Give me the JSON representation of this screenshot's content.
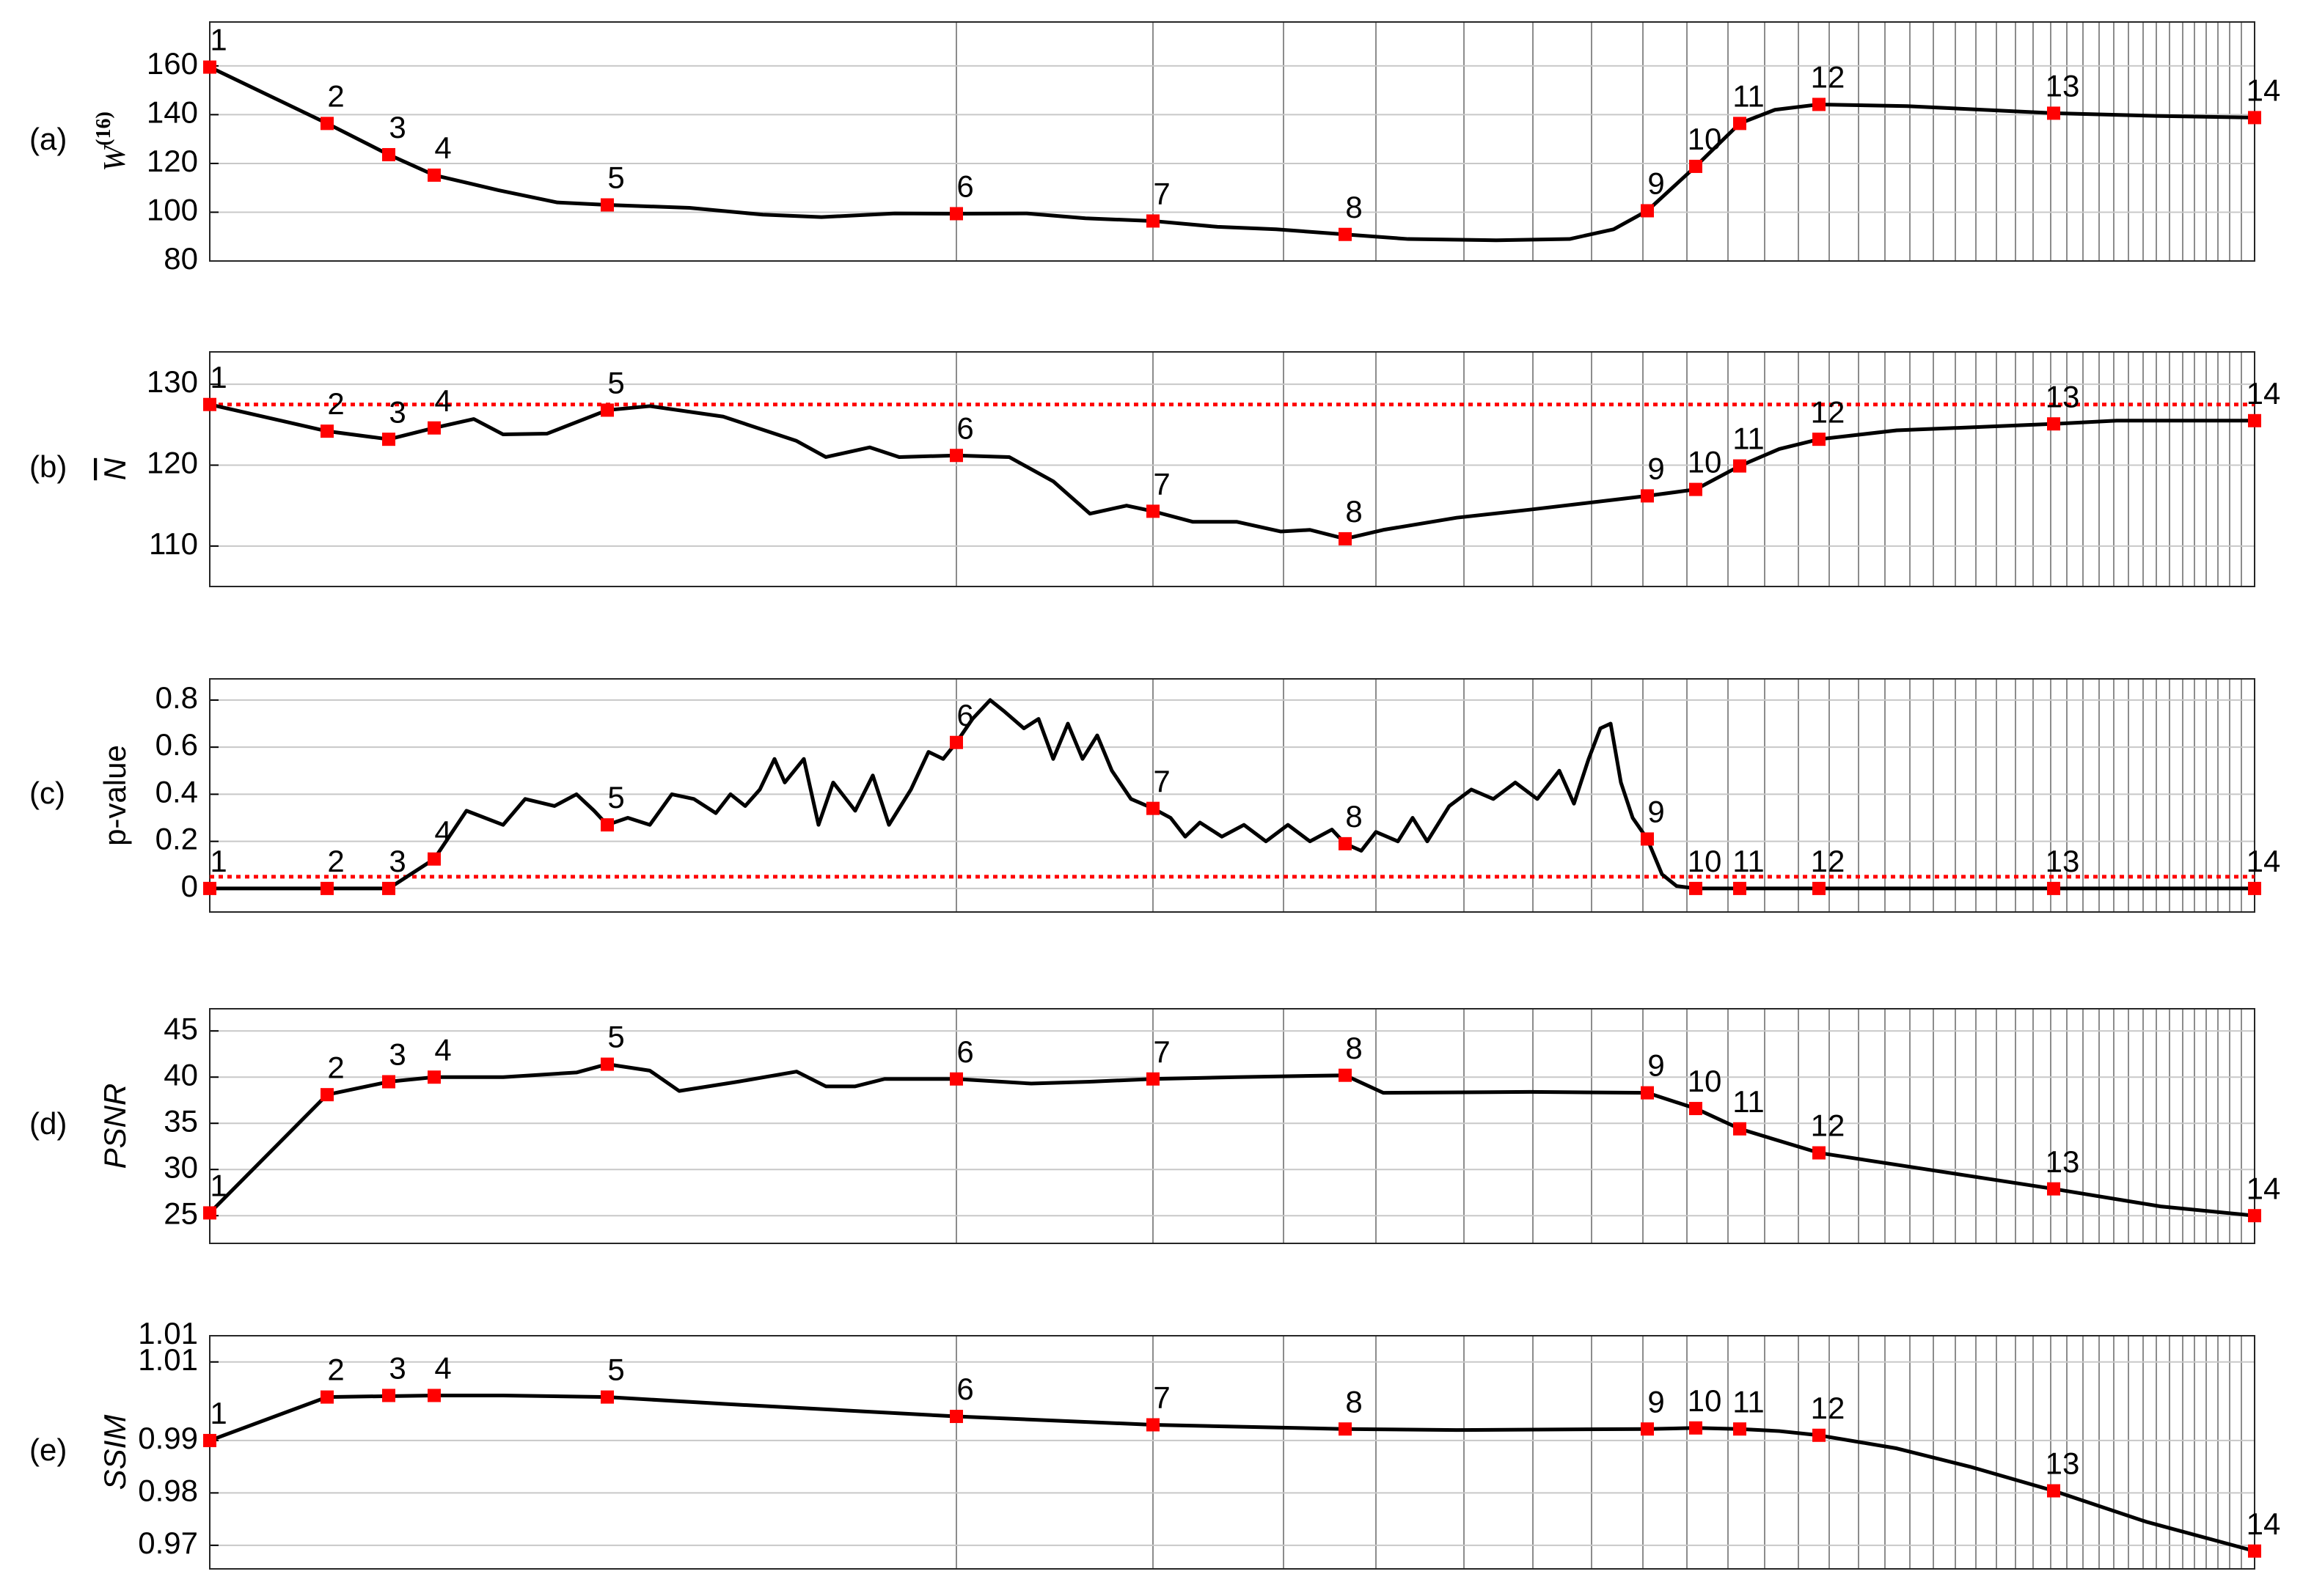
{
  "chart_data": [
    {
      "type": "line",
      "panel": "(a)",
      "ylabel": "W",
      "ylabel_sup": "(16)",
      "ylabel_italic": true,
      "ylabel_overline": false,
      "xlim": [
        0,
        1394
      ],
      "xticks": [
        509,
        643,
        732,
        795,
        855,
        902,
        942,
        977,
        1007,
        1035,
        1060,
        1083,
        1104,
        1124,
        1142,
        1159,
        1175,
        1190,
        1204,
        1218,
        1231,
        1243,
        1255,
        1266,
        1277,
        1288,
        1298,
        1308,
        1318,
        1327,
        1336,
        1345,
        1353,
        1361,
        1369,
        1377,
        1385
      ],
      "ylim": [
        80,
        178
      ],
      "yticks": [
        80,
        100,
        120,
        140,
        160
      ],
      "grid": true,
      "series": [
        {
          "color": "#000000",
          "x": [
            0,
            80,
            122,
            153,
            197,
            237,
            271,
            327,
            377,
            417,
            467,
            509,
            557,
            597,
            643,
            687,
            727,
            774,
            817,
            877,
            927,
            957,
            980,
            1013,
            1043,
            1067,
            1097,
            1157,
            1257,
            1327,
            1394
          ],
          "values": [
            159.5,
            136.4,
            123.6,
            115.2,
            109,
            104,
            103,
            101.8,
            99,
            98,
            99.5,
            99.4,
            99.5,
            97.5,
            96.4,
            94,
            93,
            90.9,
            89,
            88.5,
            89,
            93,
            100.6,
            118.8,
            136.4,
            142,
            144.2,
            143.5,
            140.6,
            139.5,
            138.8
          ]
        },
        {
          "color": "#ff0000",
          "marker": "square",
          "x": [
            0,
            80,
            122,
            153,
            271,
            509,
            643,
            774,
            980,
            1013,
            1043,
            1097,
            1257,
            1394
          ],
          "values": [
            159.5,
            136.4,
            123.6,
            115.2,
            103,
            99.4,
            96.4,
            90.9,
            100.6,
            118.8,
            136.4,
            144.2,
            140.6,
            138.8
          ],
          "point_labels": [
            "1",
            "2",
            "3",
            "4",
            "5",
            "6",
            "7",
            "8",
            "9",
            "10",
            "11",
            "12",
            "13",
            "14"
          ]
        }
      ]
    },
    {
      "type": "line",
      "panel": "(b)",
      "ylabel": "N",
      "ylabel_italic": true,
      "ylabel_overline": true,
      "xlim": [
        0,
        1394
      ],
      "xticks": [
        509,
        643,
        732,
        795,
        855,
        902,
        942,
        977,
        1007,
        1035,
        1060,
        1083,
        1104,
        1124,
        1142,
        1159,
        1175,
        1190,
        1204,
        1218,
        1231,
        1243,
        1255,
        1266,
        1277,
        1288,
        1298,
        1308,
        1318,
        1327,
        1336,
        1345,
        1353,
        1361,
        1369,
        1377,
        1385
      ],
      "ylim": [
        105,
        134
      ],
      "yticks": [
        110,
        120,
        130
      ],
      "grid": true,
      "reference_line": {
        "value": 127.5,
        "color": "#ff0000",
        "style": "dotted"
      },
      "series": [
        {
          "color": "#000000",
          "x": [
            0,
            80,
            122,
            153,
            180,
            200,
            230,
            271,
            300,
            350,
            400,
            420,
            450,
            470,
            509,
            545,
            575,
            600,
            625,
            643,
            670,
            700,
            730,
            750,
            774,
            800,
            850,
            900,
            980,
            1013,
            1043,
            1070,
            1097,
            1150,
            1257,
            1300,
            1394
          ],
          "values": [
            127.5,
            124.2,
            123.2,
            124.6,
            125.7,
            123.8,
            123.9,
            126.8,
            127.3,
            126,
            123,
            121,
            122.2,
            121,
            121.2,
            121,
            118,
            114,
            115,
            114.3,
            113,
            113,
            111.8,
            112,
            110.9,
            112,
            113.5,
            114.5,
            116.2,
            117,
            119.9,
            122,
            123.2,
            124.3,
            125.1,
            125.5,
            125.5
          ]
        },
        {
          "color": "#ff0000",
          "marker": "square",
          "x": [
            0,
            80,
            122,
            153,
            271,
            509,
            643,
            774,
            980,
            1013,
            1043,
            1097,
            1257,
            1394
          ],
          "values": [
            127.5,
            124.2,
            123.2,
            124.6,
            126.8,
            121.2,
            114.3,
            110.9,
            116.2,
            117,
            119.9,
            123.2,
            125.1,
            125.5
          ],
          "point_labels": [
            "1",
            "2",
            "3",
            "4",
            "5",
            "6",
            "7",
            "8",
            "9",
            "10",
            "11",
            "12",
            "13",
            "14"
          ]
        }
      ]
    },
    {
      "type": "line",
      "panel": "(c)",
      "ylabel": "p-value",
      "ylabel_italic": false,
      "ylabel_overline": false,
      "xlim": [
        0,
        1394
      ],
      "xticks": [
        509,
        643,
        732,
        795,
        855,
        902,
        942,
        977,
        1007,
        1035,
        1060,
        1083,
        1104,
        1124,
        1142,
        1159,
        1175,
        1190,
        1204,
        1218,
        1231,
        1243,
        1255,
        1266,
        1277,
        1288,
        1298,
        1308,
        1318,
        1327,
        1336,
        1345,
        1353,
        1361,
        1369,
        1377,
        1385
      ],
      "ylim": [
        -0.1,
        0.89
      ],
      "yticks": [
        0,
        0.2,
        0.4,
        0.6,
        0.8
      ],
      "grid": true,
      "reference_line": {
        "value": 0.05,
        "color": "#ff0000",
        "style": "dotted"
      },
      "series": [
        {
          "color": "#000000",
          "x": [
            0,
            80,
            122,
            153,
            175,
            200,
            215,
            235,
            250,
            262,
            271,
            285,
            300,
            315,
            330,
            345,
            355,
            365,
            375,
            385,
            392,
            405,
            415,
            425,
            440,
            452,
            463,
            478,
            490,
            500,
            509,
            520,
            532,
            542,
            555,
            565,
            575,
            585,
            595,
            605,
            615,
            628,
            643,
            655,
            665,
            675,
            690,
            705,
            720,
            735,
            750,
            765,
            774,
            785,
            795,
            810,
            820,
            830,
            845,
            860,
            875,
            890,
            905,
            920,
            930,
            940,
            948,
            955,
            962,
            970,
            980,
            990,
            1000,
            1013,
            1394
          ],
          "values": [
            0,
            0,
            0,
            0.125,
            0.33,
            0.27,
            0.38,
            0.35,
            0.4,
            0.33,
            0.27,
            0.3,
            0.27,
            0.4,
            0.38,
            0.32,
            0.4,
            0.35,
            0.42,
            0.55,
            0.45,
            0.55,
            0.27,
            0.45,
            0.33,
            0.48,
            0.27,
            0.42,
            0.58,
            0.55,
            0.62,
            0.72,
            0.8,
            0.75,
            0.68,
            0.72,
            0.55,
            0.7,
            0.55,
            0.65,
            0.5,
            0.38,
            0.34,
            0.3,
            0.22,
            0.28,
            0.22,
            0.27,
            0.2,
            0.27,
            0.2,
            0.25,
            0.19,
            0.16,
            0.24,
            0.2,
            0.3,
            0.2,
            0.35,
            0.42,
            0.38,
            0.45,
            0.38,
            0.5,
            0.36,
            0.55,
            0.68,
            0.7,
            0.45,
            0.3,
            0.21,
            0.06,
            0.01,
            0,
            0
          ]
        },
        {
          "color": "#ff0000",
          "marker": "square",
          "x": [
            0,
            80,
            122,
            153,
            271,
            509,
            643,
            774,
            980,
            1013,
            1043,
            1097,
            1257,
            1394
          ],
          "values": [
            0,
            0,
            0,
            0.125,
            0.27,
            0.62,
            0.34,
            0.19,
            0.21,
            0,
            0,
            0,
            0,
            0
          ],
          "point_labels": [
            "1",
            "2",
            "3",
            "4",
            "5",
            "6",
            "7",
            "8",
            "9",
            "10",
            "11",
            "12",
            "13",
            "14"
          ]
        }
      ]
    },
    {
      "type": "line",
      "panel": "(d)",
      "ylabel": "PSNR",
      "ylabel_italic": true,
      "ylabel_overline": false,
      "xlim": [
        0,
        1394
      ],
      "xticks": [
        509,
        643,
        732,
        795,
        855,
        902,
        942,
        977,
        1007,
        1035,
        1060,
        1083,
        1104,
        1124,
        1142,
        1159,
        1175,
        1190,
        1204,
        1218,
        1231,
        1243,
        1255,
        1266,
        1277,
        1288,
        1298,
        1308,
        1318,
        1327,
        1336,
        1345,
        1353,
        1361,
        1369,
        1377,
        1385
      ],
      "ylim": [
        22,
        47.4
      ],
      "yticks": [
        25,
        30,
        35,
        40,
        45
      ],
      "grid": true,
      "series": [
        {
          "color": "#000000",
          "x": [
            0,
            80,
            122,
            153,
            200,
            250,
            271,
            300,
            320,
            360,
            400,
            420,
            440,
            460,
            509,
            560,
            600,
            643,
            700,
            774,
            800,
            900,
            980,
            1013,
            1043,
            1097,
            1257,
            1330,
            1394
          ],
          "values": [
            25.3,
            38.1,
            39.5,
            40,
            40,
            40.5,
            41.4,
            40.7,
            38.5,
            39.5,
            40.6,
            39,
            39,
            39.8,
            39.8,
            39.3,
            39.5,
            39.8,
            40,
            40.2,
            38.3,
            38.4,
            38.3,
            36.6,
            34.4,
            31.8,
            27.9,
            26,
            25
          ]
        },
        {
          "color": "#ff0000",
          "marker": "square",
          "x": [
            0,
            80,
            122,
            153,
            271,
            509,
            643,
            774,
            980,
            1013,
            1043,
            1097,
            1257,
            1394
          ],
          "values": [
            25.3,
            38.1,
            39.5,
            40,
            41.4,
            39.8,
            39.8,
            40.2,
            38.3,
            36.6,
            34.4,
            31.8,
            27.9,
            25
          ],
          "point_labels": [
            "1",
            "2",
            "3",
            "4",
            "5",
            "6",
            "7",
            "8",
            "9",
            "10",
            "11",
            "12",
            "13",
            "14"
          ]
        }
      ]
    },
    {
      "type": "line",
      "panel": "(e)",
      "ylabel": "SSIM",
      "ylabel_italic": true,
      "ylabel_overline": false,
      "xlim": [
        0,
        1394
      ],
      "xticks": [
        509,
        643,
        732,
        795,
        855,
        902,
        942,
        977,
        1007,
        1035,
        1060,
        1083,
        1104,
        1124,
        1142,
        1159,
        1175,
        1190,
        1204,
        1218,
        1231,
        1243,
        1255,
        1266,
        1277,
        1288,
        1298,
        1308,
        1318,
        1327,
        1336,
        1345,
        1353,
        1361,
        1369,
        1377,
        1385
      ],
      "ylim": [
        0.9655,
        1.01
      ],
      "yticks": [
        0.97,
        0.98,
        0.99,
        {
          "value": 1.005,
          "label": "1.01"
        },
        1.01
      ],
      "grid": true,
      "series": [
        {
          "color": "#000000",
          "x": [
            0,
            80,
            153,
            200,
            271,
            350,
            509,
            643,
            774,
            850,
            980,
            1013,
            1043,
            1070,
            1097,
            1150,
            1200,
            1257,
            1320,
            1394
          ],
          "values": [
            0.99,
            0.9983,
            0.9986,
            0.9986,
            0.9983,
            0.997,
            0.9946,
            0.993,
            0.9922,
            0.992,
            0.9922,
            0.9924,
            0.9922,
            0.9918,
            0.991,
            0.9885,
            0.985,
            0.9804,
            0.9745,
            0.9689
          ]
        },
        {
          "color": "#ff0000",
          "marker": "square",
          "x": [
            0,
            80,
            122,
            153,
            271,
            509,
            643,
            774,
            980,
            1013,
            1043,
            1097,
            1257,
            1394
          ],
          "values": [
            0.99,
            0.9983,
            0.9986,
            0.9986,
            0.9983,
            0.9946,
            0.993,
            0.9922,
            0.9922,
            0.9924,
            0.9922,
            0.991,
            0.9804,
            0.9689
          ],
          "point_labels": [
            "1",
            "2",
            "3",
            "4",
            "5",
            "6",
            "7",
            "8",
            "9",
            "10",
            "11",
            "12",
            "13",
            "14"
          ]
        }
      ]
    }
  ]
}
